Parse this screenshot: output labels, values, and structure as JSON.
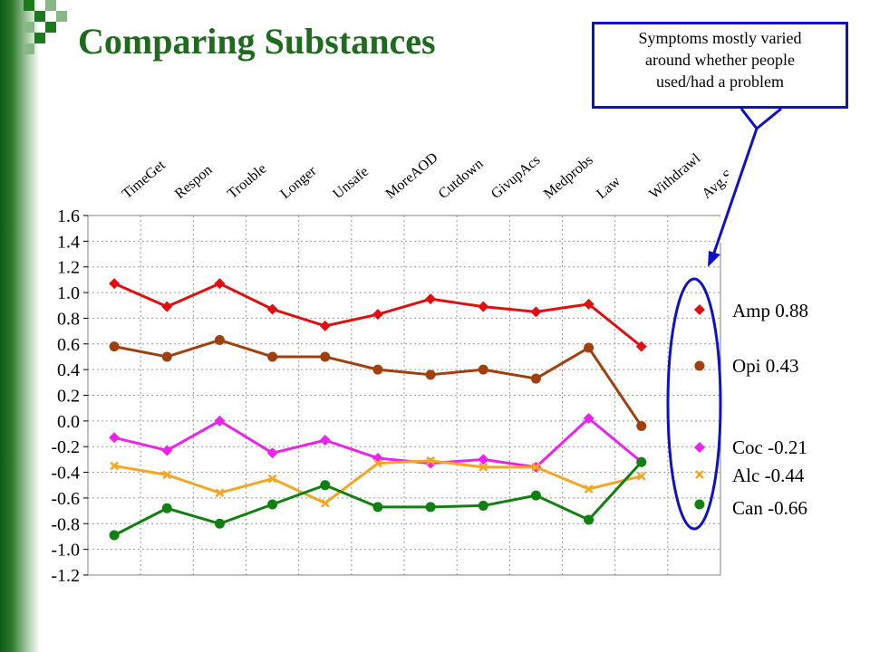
{
  "title": "Comparing Substances",
  "callout": {
    "line1": "Symptoms mostly varied",
    "line2": "around whether people",
    "line3": "used/had a problem"
  },
  "colors": {
    "title": "#1e6b1e",
    "callout_border": "#1010c8"
  },
  "chart_data": {
    "type": "line",
    "categories": [
      "TimeGet",
      "Respon",
      "Trouble",
      "Longer",
      "Unsafe",
      "MoreAOD",
      "Cutdown",
      "GivupAcs",
      "Medprobs",
      "Law",
      "Withdrawl",
      "Avg.Sx.Sev."
    ],
    "ylim": [
      -1.2,
      1.6
    ],
    "yticks": [
      "1.6",
      "1.4",
      "1.2",
      "1.0",
      "0.8",
      "0.6",
      "0.4",
      "0.2",
      "0.0",
      "-0.2",
      "-0.4",
      "-0.6",
      "-0.8",
      "-1.0",
      "-1.2"
    ],
    "grid": true,
    "series": [
      {
        "name": "Amp",
        "avg": "0.88",
        "label": "Amp 0.88",
        "color": "#e01010",
        "marker": "diamond",
        "values": [
          1.07,
          0.89,
          1.07,
          0.87,
          0.74,
          0.83,
          0.95,
          0.89,
          0.85,
          0.91,
          0.58,
          null
        ]
      },
      {
        "name": "Opi",
        "avg": "0.43",
        "label": "Opi 0.43",
        "color": "#a0400f",
        "marker": "circle",
        "values": [
          0.58,
          0.5,
          0.63,
          0.5,
          0.5,
          0.4,
          0.36,
          0.4,
          0.33,
          0.57,
          -0.04,
          null
        ]
      },
      {
        "name": "Coc",
        "avg": "-0.21",
        "label": "Coc -0.21",
        "color": "#ee22ee",
        "marker": "diamond",
        "values": [
          -0.13,
          -0.23,
          0.0,
          -0.25,
          -0.15,
          -0.29,
          -0.33,
          -0.3,
          -0.36,
          0.02,
          -0.32,
          null
        ]
      },
      {
        "name": "Alc",
        "avg": "-0.44",
        "label": "Alc -0.44",
        "color": "#f5a623",
        "marker": "x",
        "values": [
          -0.35,
          -0.42,
          -0.56,
          -0.45,
          -0.64,
          -0.33,
          -0.31,
          -0.36,
          -0.36,
          -0.53,
          -0.43,
          null
        ]
      },
      {
        "name": "Can",
        "avg": "-0.66",
        "label": "Can -0.66",
        "color": "#108010",
        "marker": "circle",
        "values": [
          -0.89,
          -0.68,
          -0.8,
          -0.65,
          -0.5,
          -0.67,
          -0.67,
          -0.66,
          -0.58,
          -0.77,
          -0.32,
          null
        ]
      }
    ]
  }
}
